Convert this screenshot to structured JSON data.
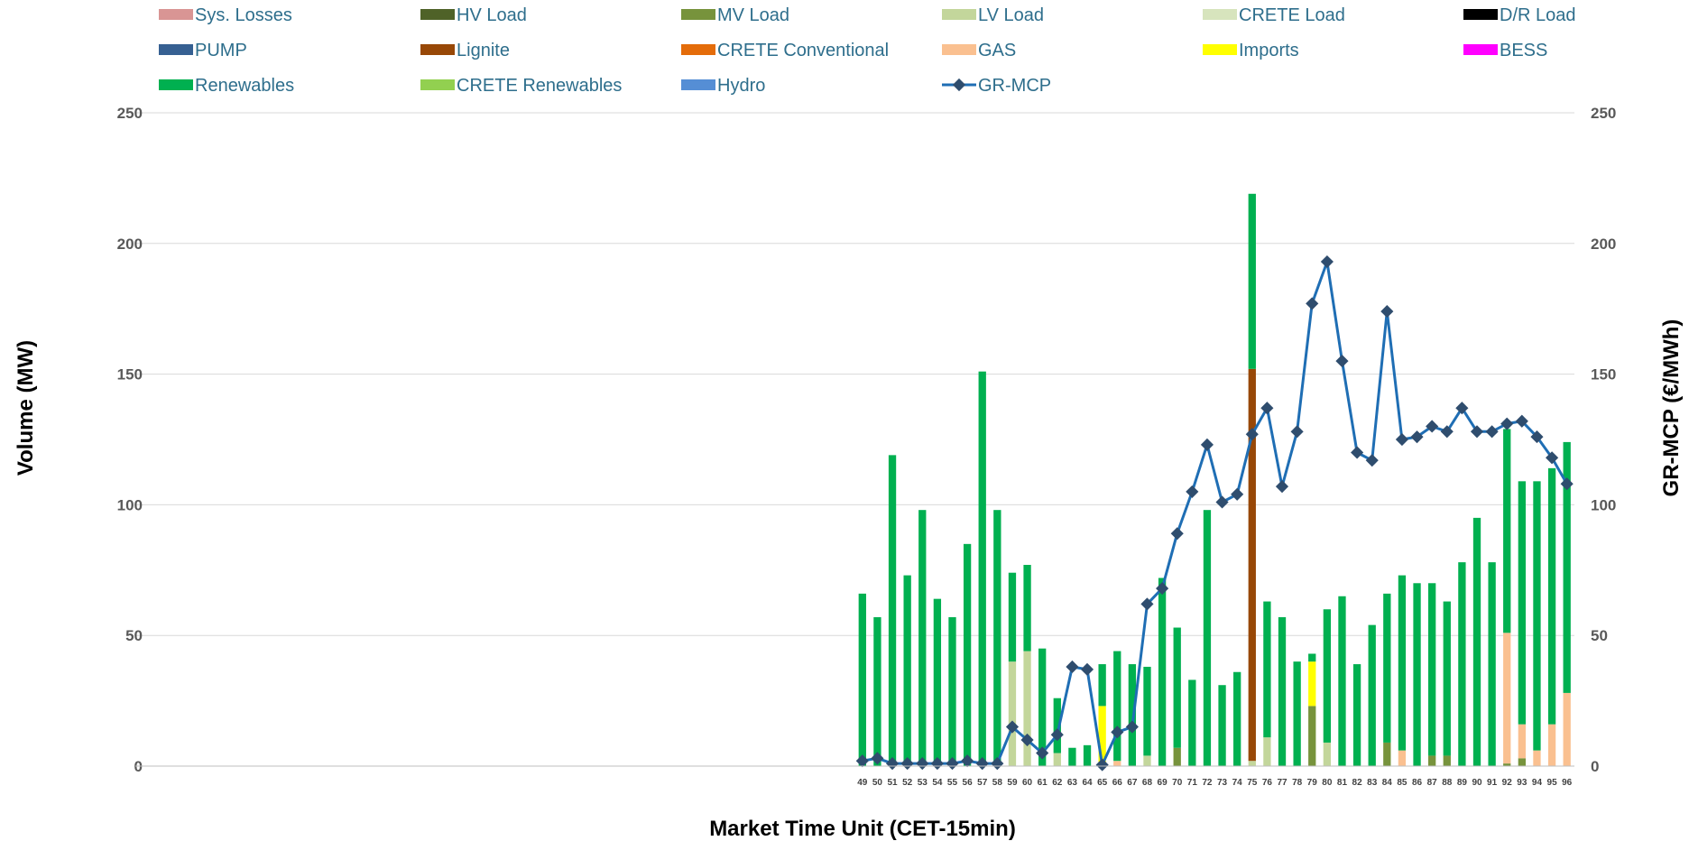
{
  "chart_data": {
    "type": "bar",
    "stacked": true,
    "xlabel": "Market Time Unit (CET-15min)",
    "ylabel_left": "Volume (MW)",
    "ylabel_right": "GR-MCP (€/MWh)",
    "ylim_left": [
      0,
      250
    ],
    "ylim_right": [
      0,
      250
    ],
    "yticks": [
      0,
      50,
      100,
      150,
      200,
      250
    ],
    "x_range": [
      1,
      96
    ],
    "categories": [
      "49",
      "50",
      "51",
      "52",
      "53",
      "54",
      "55",
      "56",
      "57",
      "58",
      "59",
      "60",
      "61",
      "62",
      "63",
      "64",
      "65",
      "66",
      "67",
      "68",
      "69",
      "70",
      "71",
      "72",
      "73",
      "74",
      "75",
      "76",
      "77",
      "78",
      "79",
      "80",
      "81",
      "82",
      "83",
      "84",
      "85",
      "86",
      "87",
      "88",
      "89",
      "90",
      "91",
      "92",
      "93",
      "94",
      "95",
      "96"
    ],
    "grid": true,
    "legend_position": "top",
    "legend": [
      {
        "name": "Sys. Losses",
        "color": "#d99594",
        "type": "bar"
      },
      {
        "name": "HV Load",
        "color": "#4f6228",
        "type": "bar"
      },
      {
        "name": "MV Load",
        "color": "#77933c",
        "type": "bar"
      },
      {
        "name": "LV Load",
        "color": "#c3d69b",
        "type": "bar"
      },
      {
        "name": "CRETE Load",
        "color": "#d7e4bd",
        "type": "bar"
      },
      {
        "name": "D/R Load",
        "color": "#000000",
        "type": "bar"
      },
      {
        "name": "PUMP",
        "color": "#366092",
        "type": "bar"
      },
      {
        "name": "Lignite",
        "color": "#984807",
        "type": "bar"
      },
      {
        "name": "CRETE Conventional",
        "color": "#e46c0a",
        "type": "bar"
      },
      {
        "name": "GAS",
        "color": "#fac090",
        "type": "bar"
      },
      {
        "name": "Imports",
        "color": "#ffff00",
        "type": "bar"
      },
      {
        "name": "BESS",
        "color": "#ff00ff",
        "type": "bar"
      },
      {
        "name": "Renewables",
        "color": "#00b050",
        "type": "bar"
      },
      {
        "name": "CRETE Renewables",
        "color": "#92d050",
        "type": "bar"
      },
      {
        "name": "Hydro",
        "color": "#558ed5",
        "type": "bar"
      },
      {
        "name": "GR-MCP",
        "color": "#1f6eb4",
        "type": "line"
      }
    ],
    "series": [
      {
        "name": "MV Load",
        "values": [
          0,
          0,
          0,
          0,
          0,
          0,
          0,
          0,
          0,
          0,
          0,
          0,
          0,
          0,
          0,
          0,
          0,
          0,
          0,
          0,
          0,
          7,
          0,
          0,
          0,
          0,
          0,
          0,
          0,
          0,
          23,
          0,
          0,
          0,
          0,
          9,
          0,
          0,
          4,
          4,
          0,
          0,
          0,
          1,
          3,
          0,
          0,
          0
        ]
      },
      {
        "name": "LV Load",
        "values": [
          0,
          0,
          0,
          0,
          0,
          0,
          0,
          0,
          0,
          0,
          40,
          44,
          0,
          5,
          0,
          0,
          0,
          0,
          0,
          4,
          0,
          0,
          0,
          0,
          0,
          0,
          2,
          11,
          0,
          0,
          0,
          9,
          0,
          0,
          0,
          0,
          0,
          0,
          0,
          0,
          0,
          0,
          0,
          0,
          0,
          0,
          0,
          0
        ]
      },
      {
        "name": "Lignite",
        "values": [
          0,
          0,
          0,
          0,
          0,
          0,
          0,
          0,
          0,
          0,
          0,
          0,
          0,
          0,
          0,
          0,
          0,
          0,
          0,
          0,
          0,
          0,
          0,
          0,
          0,
          0,
          150,
          0,
          0,
          0,
          0,
          0,
          0,
          0,
          0,
          0,
          0,
          0,
          0,
          0,
          0,
          0,
          0,
          0,
          0,
          0,
          0,
          0
        ]
      },
      {
        "name": "GAS",
        "values": [
          0,
          0,
          0,
          0,
          0,
          0,
          0,
          0,
          0,
          0,
          0,
          0,
          0,
          0,
          0,
          0,
          0,
          2,
          0,
          0,
          0,
          0,
          0,
          0,
          0,
          0,
          0,
          0,
          0,
          0,
          0,
          0,
          0,
          0,
          0,
          0,
          6,
          0,
          0,
          0,
          0,
          0,
          0,
          50,
          13,
          6,
          16,
          28
        ]
      },
      {
        "name": "Imports",
        "values": [
          0,
          0,
          0,
          0,
          0,
          0,
          0,
          0,
          0,
          0,
          0,
          0,
          0,
          0,
          0,
          0,
          23,
          0,
          0,
          0,
          0,
          0,
          0,
          0,
          0,
          0,
          0,
          0,
          0,
          0,
          17,
          0,
          0,
          0,
          0,
          0,
          0,
          0,
          0,
          0,
          0,
          0,
          0,
          0,
          0,
          0,
          0,
          0
        ]
      },
      {
        "name": "Renewables",
        "values": [
          66,
          57,
          119,
          73,
          98,
          64,
          57,
          85,
          151,
          98,
          34,
          33,
          45,
          21,
          7,
          8,
          16,
          42,
          39,
          34,
          72,
          46,
          33,
          98,
          31,
          36,
          67,
          52,
          57,
          40,
          3,
          51,
          65,
          39,
          54,
          57,
          67,
          70,
          66,
          59,
          78,
          95,
          78,
          78,
          93,
          103,
          98,
          96
        ]
      },
      {
        "name": "GR-MCP",
        "type": "line",
        "values": [
          2,
          3,
          1,
          1,
          1,
          1,
          1,
          2,
          1,
          1,
          15,
          10,
          5,
          12,
          38,
          37,
          0.5,
          13,
          15,
          62,
          68,
          89,
          105,
          123,
          101,
          104,
          127,
          137,
          107,
          128,
          177,
          193,
          155,
          120,
          117,
          174,
          125,
          126,
          130,
          128,
          137,
          128,
          128,
          131,
          132,
          126,
          118,
          108
        ]
      }
    ]
  }
}
